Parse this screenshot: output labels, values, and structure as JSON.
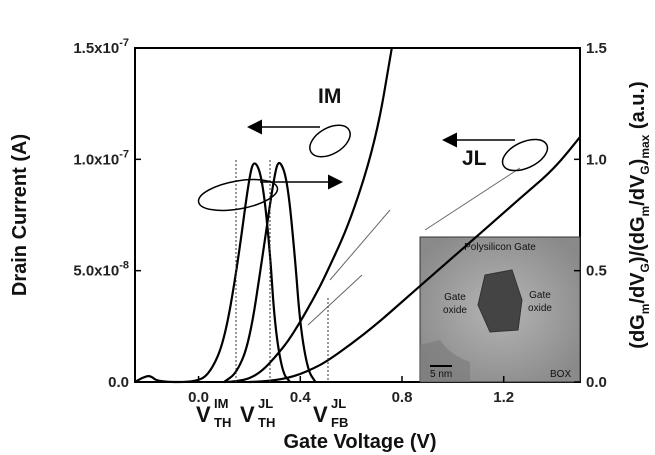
{
  "chart_data": {
    "type": "line",
    "xlabel": "Gate Voltage (V)",
    "ylabel_left": "Drain Current (A)",
    "ylabel_right": "(dGm/dVG)/(dGm/dVG)max (a.u.)",
    "xlim": [
      -0.25,
      1.5
    ],
    "ylim_left": [
      0,
      1.5e-07
    ],
    "ylim_right": [
      0,
      1.5
    ],
    "x_ticks": [
      "0.0",
      "0.4",
      "0.8",
      "1.2"
    ],
    "x_tick_values": [
      0.0,
      0.4,
      0.8,
      1.2
    ],
    "y_ticks_left": [
      {
        "mantissa": "0.0",
        "exp": "",
        "value": 0
      },
      {
        "mantissa": "5.0x10",
        "exp": "-8",
        "value": 5e-08
      },
      {
        "mantissa": "1.0x10",
        "exp": "-7",
        "value": 1e-07
      },
      {
        "mantissa": "1.5x10",
        "exp": "-7",
        "value": 1.5e-07
      }
    ],
    "y_ticks_right": [
      "0.0",
      "0.5",
      "1.0",
      "1.5"
    ],
    "y_tick_values_right": [
      0,
      0.5,
      1.0,
      1.5
    ],
    "curve_labels": {
      "im": "IM",
      "jl": "JL"
    },
    "series": [
      {
        "name": "IM",
        "axis": "left",
        "x": [
          0.1,
          0.15,
          0.2,
          0.25,
          0.3,
          0.35,
          0.4,
          0.45,
          0.5,
          0.6,
          0.7,
          0.76
        ],
        "y": [
          0.0,
          3e-10,
          1.5e-09,
          5e-09,
          1.1e-08,
          1.8e-08,
          2.7e-08,
          3.7e-08,
          4.8e-08,
          7.3e-08,
          1.1e-07,
          1.5e-07
        ]
      },
      {
        "name": "JL",
        "axis": "left",
        "x": [
          0.2,
          0.25,
          0.3,
          0.35,
          0.4,
          0.45,
          0.5,
          0.6,
          0.7,
          0.8,
          0.9,
          1.0,
          1.1,
          1.2,
          1.3,
          1.4,
          1.5
        ],
        "y": [
          0.0,
          3e-10,
          8e-10,
          1.8e-09,
          3.5e-09,
          6e-09,
          9e-09,
          1.7e-08,
          2.6e-08,
          3.6e-08,
          4.6e-08,
          5.6e-08,
          6.6e-08,
          7.6e-08,
          8.6e-08,
          9.6e-08,
          1.1e-07
        ]
      },
      {
        "name": "dGm/dVG IM",
        "axis": "right",
        "x": [
          -0.25,
          -0.22,
          -0.19,
          -0.16,
          0.0,
          0.05,
          0.1,
          0.15,
          0.2,
          0.22,
          0.25,
          0.28,
          0.3,
          0.33,
          0.36
        ],
        "y": [
          0.0,
          0.02,
          0.03,
          0.0,
          0.0,
          0.05,
          0.18,
          0.5,
          0.93,
          1.0,
          0.92,
          0.6,
          0.25,
          0.04,
          0.0
        ]
      },
      {
        "name": "dGm/dVG JL",
        "axis": "right",
        "x": [
          0.1,
          0.15,
          0.2,
          0.25,
          0.3,
          0.32,
          0.35,
          0.38,
          0.4,
          0.43,
          0.46
        ],
        "y": [
          0.0,
          0.04,
          0.18,
          0.55,
          0.95,
          1.0,
          0.9,
          0.55,
          0.25,
          0.05,
          0.0
        ]
      }
    ],
    "annotations": {
      "vth_im": {
        "main": "V",
        "sup": "IM",
        "sub": "TH",
        "x": 0.22
      },
      "vth_jl": {
        "main": "V",
        "sup": "JL",
        "sub": "TH",
        "x": 0.32
      },
      "vfb_jl": {
        "main": "V",
        "sup": "JL",
        "sub": "FB",
        "x": 0.57
      }
    },
    "inset": {
      "title": "Polysilicon Gate",
      "left_label": [
        "Gate",
        "oxide"
      ],
      "right_label": [
        "Gate",
        "oxide"
      ],
      "box_label": "BOX",
      "scale_label": "5 nm"
    }
  }
}
